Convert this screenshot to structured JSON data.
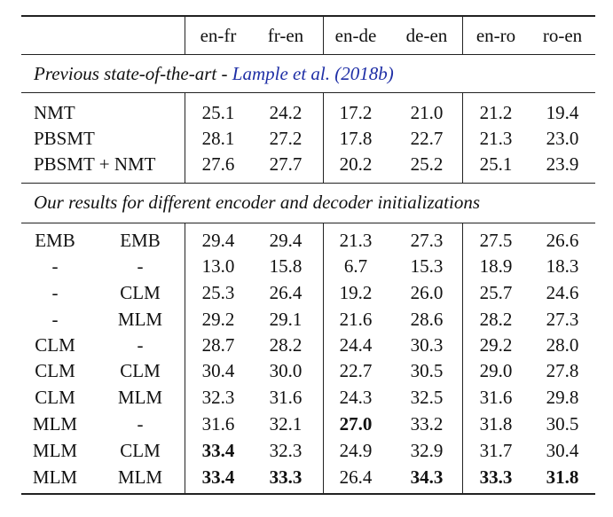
{
  "columns": [
    "en-fr",
    "fr-en",
    "en-de",
    "de-en",
    "en-ro",
    "ro-en"
  ],
  "section1": {
    "title_prefix": "Previous state-of-the-art - ",
    "citation": "Lample et al. (2018b)",
    "rows": [
      {
        "label": "NMT",
        "values": [
          "25.1",
          "24.2",
          "17.2",
          "21.0",
          "21.2",
          "19.4"
        ]
      },
      {
        "label": "PBSMT",
        "values": [
          "28.1",
          "27.2",
          "17.8",
          "22.7",
          "21.3",
          "23.0"
        ]
      },
      {
        "label": "PBSMT + NMT",
        "values": [
          "27.6",
          "27.7",
          "20.2",
          "25.2",
          "25.1",
          "23.9"
        ]
      }
    ]
  },
  "section2": {
    "title": "Our results for different encoder and decoder initializations",
    "rows": [
      {
        "enc": "EMB",
        "dec": "EMB",
        "values": [
          "29.4",
          "29.4",
          "21.3",
          "27.3",
          "27.5",
          "26.6"
        ]
      },
      {
        "enc": "-",
        "dec": "-",
        "values": [
          "13.0",
          "15.8",
          "6.7",
          "15.3",
          "18.9",
          "18.3"
        ]
      },
      {
        "enc": "-",
        "dec": "CLM",
        "values": [
          "25.3",
          "26.4",
          "19.2",
          "26.0",
          "25.7",
          "24.6"
        ]
      },
      {
        "enc": "-",
        "dec": "MLM",
        "values": [
          "29.2",
          "29.1",
          "21.6",
          "28.6",
          "28.2",
          "27.3"
        ]
      },
      {
        "enc": "CLM",
        "dec": "-",
        "values": [
          "28.7",
          "28.2",
          "24.4",
          "30.3",
          "29.2",
          "28.0"
        ]
      },
      {
        "enc": "CLM",
        "dec": "CLM",
        "values": [
          "30.4",
          "30.0",
          "22.7",
          "30.5",
          "29.0",
          "27.8"
        ]
      },
      {
        "enc": "CLM",
        "dec": "MLM",
        "values": [
          "32.3",
          "31.6",
          "24.3",
          "32.5",
          "31.6",
          "29.8"
        ]
      },
      {
        "enc": "MLM",
        "dec": "-",
        "values": [
          "31.6",
          "32.1",
          "27.0",
          "33.2",
          "31.8",
          "30.5"
        ]
      },
      {
        "enc": "MLM",
        "dec": "CLM",
        "values": [
          "33.4",
          "32.3",
          "24.9",
          "32.9",
          "31.7",
          "30.4"
        ]
      },
      {
        "enc": "MLM",
        "dec": "MLM",
        "values": [
          "33.4",
          "33.3",
          "26.4",
          "34.3",
          "33.3",
          "31.8"
        ]
      }
    ]
  },
  "bold_cells": [
    [
      7,
      2
    ],
    [
      8,
      0
    ],
    [
      9,
      0
    ],
    [
      9,
      1
    ],
    [
      9,
      3
    ],
    [
      9,
      4
    ],
    [
      9,
      5
    ]
  ]
}
